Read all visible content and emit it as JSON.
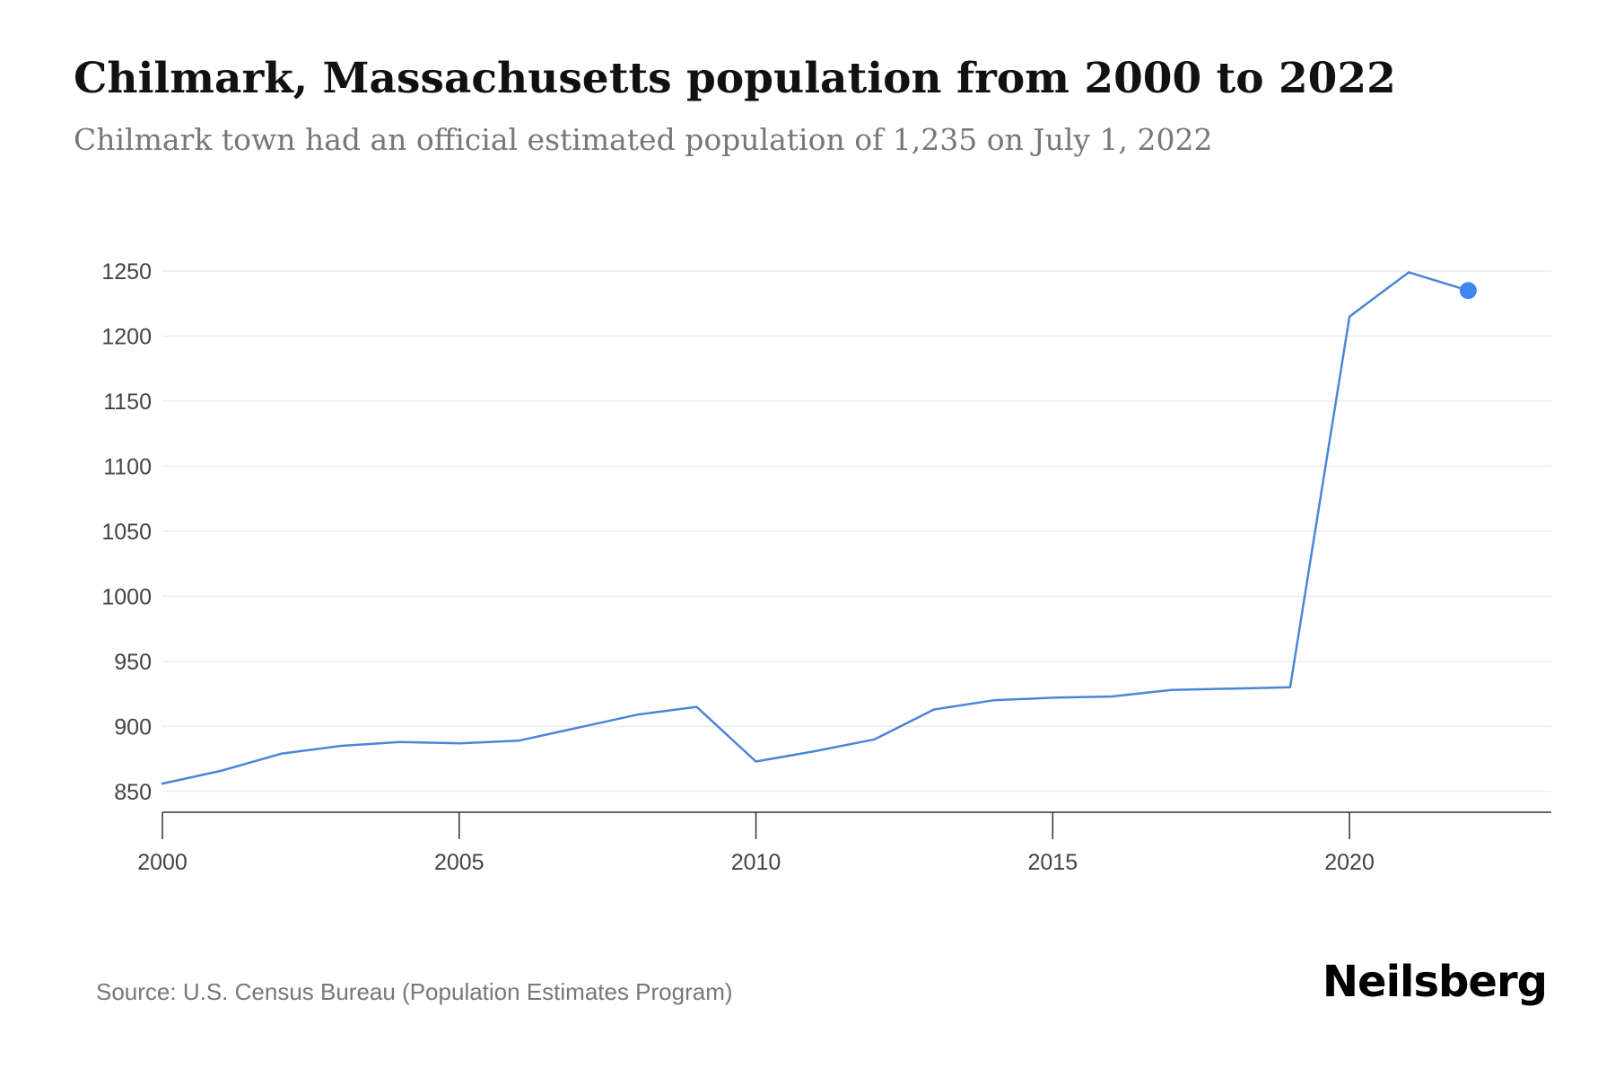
{
  "title": "Chilmark, Massachusetts population from 2000 to 2022",
  "subtitle": "Chilmark town had an official estimated population of 1,235 on July 1, 2022",
  "source": "Source: U.S. Census Bureau (Population Estimates Program)",
  "brand": "Neilsberg",
  "colors": {
    "line": "#4a86d8",
    "marker": "#3f86ee",
    "grid": "#ececec",
    "axis": "#333333"
  },
  "chart_data": {
    "type": "line",
    "title": "Chilmark, Massachusetts population from 2000 to 2022",
    "xlabel": "",
    "ylabel": "",
    "x": [
      2000,
      2001,
      2002,
      2003,
      2004,
      2005,
      2006,
      2007,
      2008,
      2009,
      2010,
      2011,
      2012,
      2013,
      2014,
      2015,
      2016,
      2017,
      2018,
      2019,
      2020,
      2021,
      2022
    ],
    "series": [
      {
        "values": [
          856,
          866,
          879,
          885,
          888,
          887,
          889,
          899,
          909,
          915,
          873,
          881,
          890,
          913,
          920,
          922,
          923,
          928,
          929,
          930,
          1215,
          1249,
          1235
        ]
      }
    ],
    "xlim": [
      2000,
      2023.4
    ],
    "ylim": [
      834,
      1250
    ],
    "xticks": [
      2000,
      2005,
      2010,
      2015,
      2020
    ],
    "yticks": [
      850,
      900,
      950,
      1000,
      1050,
      1100,
      1150,
      1200,
      1250
    ],
    "grid": true,
    "highlight_last_point": true
  }
}
